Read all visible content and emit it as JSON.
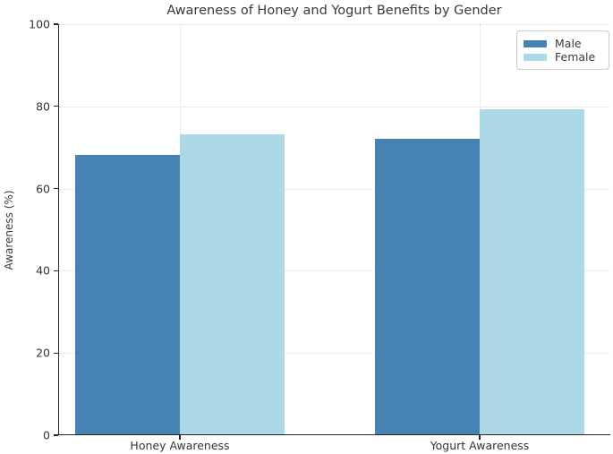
{
  "figure": {
    "title": "Awareness of Honey and Yogurt Benefits by Gender"
  },
  "chart_data": {
    "type": "bar",
    "title": "Awareness of Honey and Yogurt Benefits by Gender",
    "xlabel": "",
    "ylabel": "Awareness (%)",
    "categories": [
      "Honey Awareness",
      "Yogurt Awareness"
    ],
    "series": [
      {
        "name": "Male",
        "color": "#4682B4",
        "values": [
          68,
          72
        ]
      },
      {
        "name": "Female",
        "color": "#ADD8E6",
        "values": [
          73,
          79
        ]
      }
    ],
    "ylim": [
      0,
      100
    ],
    "yticks": [
      0,
      20,
      40,
      60,
      80,
      100
    ],
    "grid": true,
    "grid_linestyle": "dotted",
    "grid_color": "#d9d9d9",
    "axis_color": "#262626",
    "text_color": "#3a3a3a",
    "legend_position": "upper right"
  }
}
